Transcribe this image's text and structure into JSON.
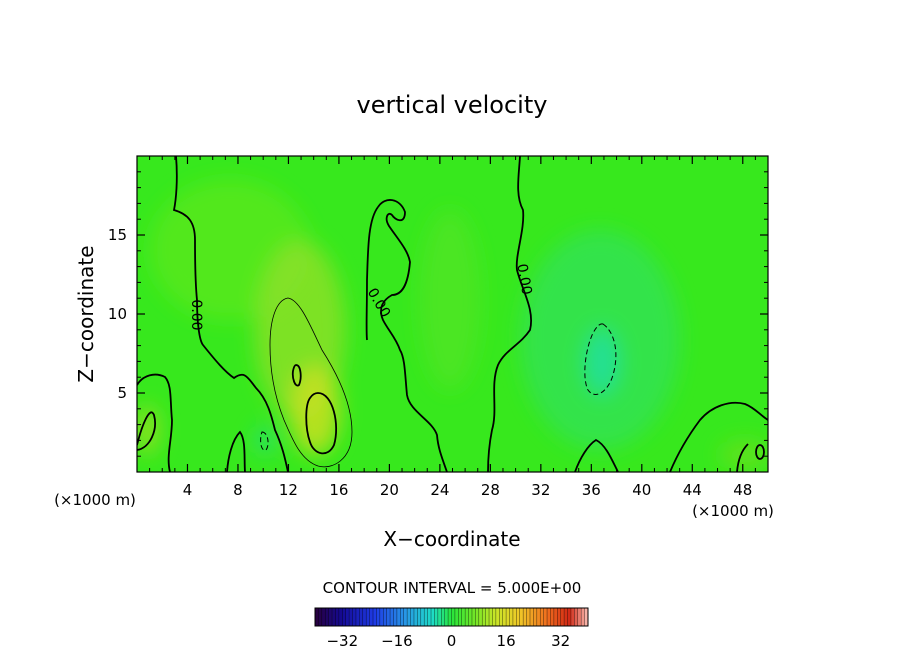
{
  "chart_data": {
    "type": "heatmap",
    "title": "vertical velocity",
    "xlabel": "X−coordinate",
    "ylabel": "Z−coordinate",
    "x_unit": "(×1000 m)",
    "y_unit": "(×1000 m)",
    "xlim": [
      0,
      50
    ],
    "ylim": [
      0,
      20
    ],
    "x_ticks": [
      4,
      8,
      12,
      16,
      20,
      24,
      28,
      32,
      36,
      40,
      44,
      48
    ],
    "y_ticks": [
      5,
      10,
      15
    ],
    "contour_label": "0.00",
    "contour_interval_label": "CONTOUR INTERVAL = 5.000E+00",
    "colorbar": {
      "ticks": [
        -32,
        -16,
        0,
        16,
        32
      ],
      "tick_labels": [
        "−32",
        "−16",
        "0",
        "16",
        "32"
      ],
      "range": [
        -40,
        40
      ]
    },
    "features": [
      {
        "kind": "updraft",
        "x": 14.5,
        "z": 3.0,
        "value": 12
      },
      {
        "kind": "updraft",
        "x": 13.0,
        "z": 6.0,
        "value": 10
      },
      {
        "kind": "updraft",
        "x": 1.0,
        "z": 2.5,
        "value": 6
      },
      {
        "kind": "updraft",
        "x": 26.0,
        "z": 10.0,
        "value": 3
      },
      {
        "kind": "updraft",
        "x": 49.0,
        "z": 1.0,
        "value": 4
      },
      {
        "kind": "downdraft",
        "x": 37.0,
        "z": 7.0,
        "value": -6
      },
      {
        "kind": "downdraft",
        "x": 10.3,
        "z": 2.2,
        "value": -3
      }
    ]
  }
}
